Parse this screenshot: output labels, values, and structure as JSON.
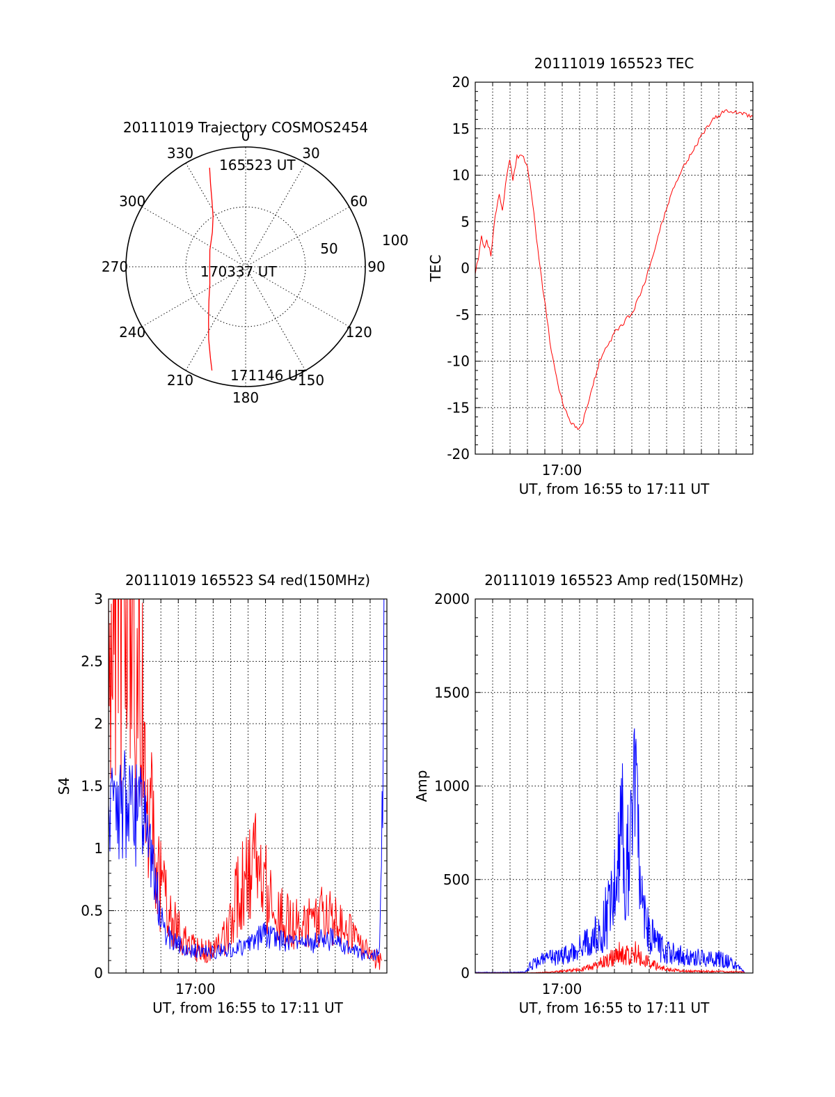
{
  "chart_data": [
    {
      "type": "polar",
      "title": "20111019 Trajectory COSMOS2454",
      "angle_labels": [
        "0",
        "30",
        "60",
        "90",
        "120",
        "150",
        "180",
        "210",
        "240",
        "270",
        "300",
        "330"
      ],
      "radius_labels": [
        "50",
        "100"
      ],
      "annotations": [
        "165523 UT",
        "170337 UT",
        "171146 UT"
      ],
      "trajectory": [
        [
          340,
          88
        ],
        [
          337,
          75
        ],
        [
          333,
          62
        ],
        [
          327,
          50
        ],
        [
          316,
          40
        ],
        [
          295,
          33
        ],
        [
          270,
          30
        ],
        [
          245,
          33
        ],
        [
          227,
          42
        ],
        [
          215,
          54
        ],
        [
          207,
          68
        ],
        [
          201,
          82
        ],
        [
          198,
          91
        ]
      ],
      "series_color": "#ff0000",
      "rlim": [
        0,
        100
      ]
    },
    {
      "type": "line",
      "title": "20111019 165523 TEC",
      "xlabel": "UT, from 16:55 to 17:11 UT",
      "ylabel": "TEC",
      "x_tick_labels": [
        {
          "x": 17.0,
          "label": "17:00"
        }
      ],
      "y_tick_labels": [
        "20",
        "15",
        "10",
        "5",
        "0",
        "-5",
        "-10",
        "-15",
        "-20"
      ],
      "xlim": [
        16.917,
        17.183
      ],
      "ylim": [
        -20,
        20
      ],
      "grid": true,
      "series": [
        {
          "color": "#ff0000",
          "points": [
            [
              16.917,
              -0.5
            ],
            [
              16.92,
              1
            ],
            [
              16.923,
              3.5
            ],
            [
              16.926,
              2
            ],
            [
              16.928,
              3
            ],
            [
              16.932,
              1.5
            ],
            [
              16.936,
              5.5
            ],
            [
              16.94,
              8
            ],
            [
              16.943,
              6
            ],
            [
              16.946,
              9
            ],
            [
              16.95,
              11.5
            ],
            [
              16.953,
              9.5
            ],
            [
              16.957,
              12
            ],
            [
              16.962,
              12.2
            ],
            [
              16.967,
              11
            ],
            [
              16.972,
              7
            ],
            [
              16.978,
              1
            ],
            [
              16.984,
              -4
            ],
            [
              16.99,
              -9
            ],
            [
              16.996,
              -12.5
            ],
            [
              17.002,
              -15
            ],
            [
              17.008,
              -16.5
            ],
            [
              17.014,
              -17.2
            ],
            [
              17.019,
              -17
            ],
            [
              17.024,
              -15
            ],
            [
              17.03,
              -12.5
            ],
            [
              17.036,
              -10
            ],
            [
              17.043,
              -8.5
            ],
            [
              17.05,
              -7
            ],
            [
              17.058,
              -6
            ],
            [
              17.066,
              -5
            ],
            [
              17.075,
              -3
            ],
            [
              17.085,
              0.5
            ],
            [
              17.095,
              4.5
            ],
            [
              17.105,
              8
            ],
            [
              17.115,
              10.5
            ],
            [
              17.125,
              12.5
            ],
            [
              17.135,
              14.5
            ],
            [
              17.145,
              16
            ],
            [
              17.155,
              16.8
            ],
            [
              17.165,
              16.9
            ],
            [
              17.173,
              16.6
            ],
            [
              17.183,
              16.3
            ]
          ]
        }
      ]
    },
    {
      "type": "line",
      "title": "20111019 165523 S4 red(150MHz)",
      "xlabel": "UT, from 16:55 to 17:11 UT",
      "ylabel": "S4",
      "x_tick_labels": [
        {
          "x": 17.0,
          "label": "17:00"
        }
      ],
      "y_tick_labels": [
        "3",
        "2.5",
        "2",
        "1.5",
        "1",
        "0.5",
        "0"
      ],
      "xlim": [
        16.917,
        17.183
      ],
      "ylim": [
        0,
        3
      ],
      "grid": true,
      "series": [
        {
          "color": "#ff0000",
          "points": [
            [
              16.917,
              2.7
            ],
            [
              16.925,
              3.0
            ],
            [
              16.935,
              2.8
            ],
            [
              16.945,
              2.4
            ],
            [
              16.95,
              2.0
            ],
            [
              16.955,
              1.5
            ],
            [
              16.96,
              1.0
            ],
            [
              16.965,
              0.75
            ],
            [
              16.97,
              0.6
            ],
            [
              16.975,
              0.45
            ],
            [
              16.98,
              0.38
            ],
            [
              16.985,
              0.32
            ],
            [
              16.99,
              0.25
            ],
            [
              17.0,
              0.2
            ],
            [
              17.01,
              0.18
            ],
            [
              17.02,
              0.22
            ],
            [
              17.03,
              0.3
            ],
            [
              17.035,
              0.45
            ],
            [
              17.04,
              0.6
            ],
            [
              17.045,
              0.7
            ],
            [
              17.05,
              0.75
            ],
            [
              17.055,
              0.85
            ],
            [
              17.06,
              0.9
            ],
            [
              17.065,
              0.8
            ],
            [
              17.07,
              0.65
            ],
            [
              17.075,
              0.5
            ],
            [
              17.08,
              0.45
            ],
            [
              17.09,
              0.42
            ],
            [
              17.1,
              0.38
            ],
            [
              17.11,
              0.4
            ],
            [
              17.12,
              0.45
            ],
            [
              17.13,
              0.42
            ],
            [
              17.14,
              0.35
            ],
            [
              17.15,
              0.3
            ],
            [
              17.16,
              0.2
            ],
            [
              17.17,
              0.12
            ],
            [
              17.178,
              0.1
            ]
          ]
        },
        {
          "color": "#0000ff",
          "points": [
            [
              16.917,
              1.3
            ],
            [
              16.925,
              1.25
            ],
            [
              16.935,
              1.35
            ],
            [
              16.945,
              1.3
            ],
            [
              16.95,
              1.2
            ],
            [
              16.955,
              1.0
            ],
            [
              16.96,
              0.8
            ],
            [
              16.965,
              0.55
            ],
            [
              16.97,
              0.35
            ],
            [
              16.975,
              0.28
            ],
            [
              16.98,
              0.24
            ],
            [
              16.99,
              0.2
            ],
            [
              17.0,
              0.18
            ],
            [
              17.01,
              0.17
            ],
            [
              17.02,
              0.17
            ],
            [
              17.03,
              0.18
            ],
            [
              17.04,
              0.2
            ],
            [
              17.05,
              0.22
            ],
            [
              17.06,
              0.28
            ],
            [
              17.065,
              0.32
            ],
            [
              17.07,
              0.3
            ],
            [
              17.08,
              0.26
            ],
            [
              17.09,
              0.24
            ],
            [
              17.1,
              0.22
            ],
            [
              17.11,
              0.24
            ],
            [
              17.12,
              0.26
            ],
            [
              17.13,
              0.27
            ],
            [
              17.14,
              0.22
            ],
            [
              17.15,
              0.18
            ],
            [
              17.16,
              0.14
            ],
            [
              17.17,
              0.13
            ],
            [
              17.176,
              0.2
            ],
            [
              17.179,
              1.5
            ],
            [
              17.181,
              3.0
            ]
          ]
        }
      ]
    },
    {
      "type": "line",
      "title": "20111019 165523 Amp red(150MHz)",
      "xlabel": "UT, from 16:55 to 17:11 UT",
      "ylabel": "Amp",
      "x_tick_labels": [
        {
          "x": 17.0,
          "label": "17:00"
        }
      ],
      "y_tick_labels": [
        "2000",
        "1500",
        "1000",
        "500",
        "0"
      ],
      "xlim": [
        16.917,
        17.183
      ],
      "ylim": [
        0,
        2000
      ],
      "grid": true,
      "series": [
        {
          "color": "#0000ff",
          "points": [
            [
              16.917,
              3
            ],
            [
              16.95,
              3
            ],
            [
              16.965,
              5
            ],
            [
              16.97,
              40
            ],
            [
              16.98,
              70
            ],
            [
              16.99,
              80
            ],
            [
              17.0,
              90
            ],
            [
              17.01,
              110
            ],
            [
              17.02,
              140
            ],
            [
              17.03,
              180
            ],
            [
              17.04,
              260
            ],
            [
              17.045,
              340
            ],
            [
              17.05,
              450
            ],
            [
              17.055,
              600
            ],
            [
              17.058,
              750
            ],
            [
              17.06,
              500
            ],
            [
              17.065,
              620
            ],
            [
              17.068,
              880
            ],
            [
              17.07,
              1040
            ],
            [
              17.073,
              700
            ],
            [
              17.076,
              420
            ],
            [
              17.08,
              250
            ],
            [
              17.09,
              150
            ],
            [
              17.1,
              110
            ],
            [
              17.11,
              100
            ],
            [
              17.12,
              90
            ],
            [
              17.13,
              85
            ],
            [
              17.14,
              80
            ],
            [
              17.15,
              75
            ],
            [
              17.16,
              60
            ],
            [
              17.17,
              30
            ],
            [
              17.175,
              5
            ]
          ]
        },
        {
          "color": "#ff0000",
          "points": [
            [
              16.917,
              1
            ],
            [
              16.97,
              1
            ],
            [
              16.99,
              5
            ],
            [
              17.0,
              10
            ],
            [
              17.02,
              20
            ],
            [
              17.03,
              35
            ],
            [
              17.04,
              60
            ],
            [
              17.05,
              85
            ],
            [
              17.055,
              120
            ],
            [
              17.06,
              90
            ],
            [
              17.07,
              110
            ],
            [
              17.08,
              70
            ],
            [
              17.09,
              40
            ],
            [
              17.1,
              20
            ],
            [
              17.12,
              10
            ],
            [
              17.15,
              8
            ],
            [
              17.175,
              5
            ]
          ]
        }
      ]
    }
  ]
}
